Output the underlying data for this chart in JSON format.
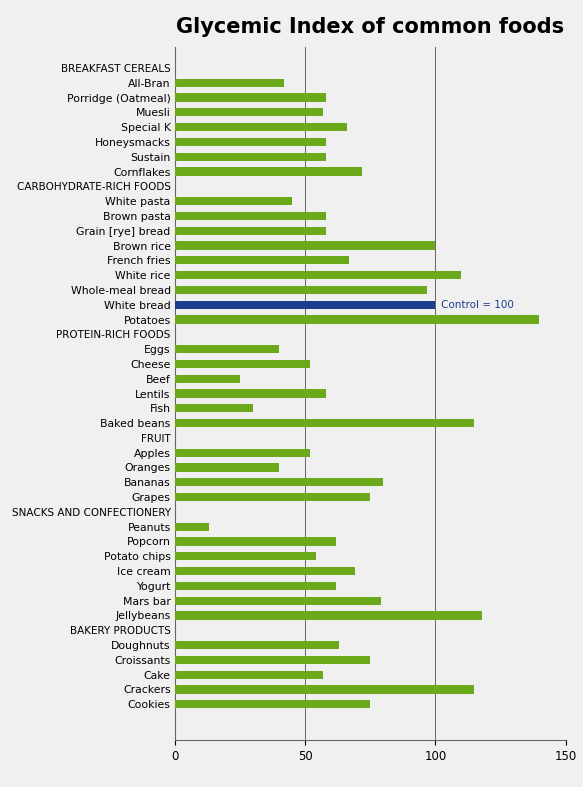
{
  "title": "Glycemic Index of common foods",
  "title_fontsize": 15,
  "title_fontweight": "bold",
  "background_color": "#f0f0f0",
  "plot_bg_color": "#f0f0f0",
  "bar_color_green": "#6aaa1a",
  "bar_color_blue": "#1a3e8c",
  "xlim": [
    0,
    150
  ],
  "xticks": [
    0,
    50,
    100,
    150
  ],
  "categories": [
    "BREAKFAST CEREALS",
    "All-Bran",
    "Porridge (Oatmeal)",
    "Muesli",
    "Special K",
    "Honeysmacks",
    "Sustain",
    "Cornflakes",
    "CARBOHYDRATE-RICH FOODS",
    "White pasta",
    "Brown pasta",
    "Grain [rye] bread",
    "Brown rice",
    "French fries",
    "White rice",
    "Whole-meal bread",
    "White bread",
    "Potatoes",
    "PROTEIN-RICH FOODS",
    "Eggs",
    "Cheese",
    "Beef",
    "Lentils",
    "Fish",
    "Baked beans",
    "FRUIT",
    "Apples",
    "Oranges",
    "Bananas",
    "Grapes",
    "SNACKS AND CONFECTIONERY",
    "Peanuts",
    "Popcorn",
    "Potato chips",
    "Ice cream",
    "Yogurt",
    "Mars bar",
    "Jellybeans",
    "BAKERY PRODUCTS",
    "Doughnuts",
    "Croissants",
    "Cake",
    "Crackers",
    "Cookies"
  ],
  "values": [
    0,
    42,
    58,
    57,
    66,
    58,
    58,
    72,
    0,
    45,
    58,
    58,
    100,
    67,
    110,
    97,
    100,
    140,
    0,
    40,
    52,
    25,
    58,
    30,
    115,
    0,
    52,
    40,
    80,
    75,
    0,
    13,
    62,
    54,
    69,
    62,
    79,
    118,
    0,
    63,
    75,
    57,
    115,
    75
  ],
  "is_header": [
    true,
    false,
    false,
    false,
    false,
    false,
    false,
    false,
    true,
    false,
    false,
    false,
    false,
    false,
    false,
    false,
    false,
    false,
    true,
    false,
    false,
    false,
    false,
    false,
    false,
    true,
    false,
    false,
    false,
    false,
    true,
    false,
    false,
    false,
    false,
    false,
    false,
    false,
    true,
    false,
    false,
    false,
    false,
    false
  ],
  "is_control": [
    false,
    false,
    false,
    false,
    false,
    false,
    false,
    false,
    false,
    false,
    false,
    false,
    false,
    false,
    false,
    false,
    true,
    false,
    false,
    false,
    false,
    false,
    false,
    false,
    false,
    false,
    false,
    false,
    false,
    false,
    false,
    false,
    false,
    false,
    false,
    false,
    false,
    false,
    false,
    false,
    false,
    false,
    false,
    false
  ],
  "control_label": "Control = 100",
  "grid_color": "#666666",
  "figsize": [
    5.83,
    7.87
  ],
  "dpi": 100
}
